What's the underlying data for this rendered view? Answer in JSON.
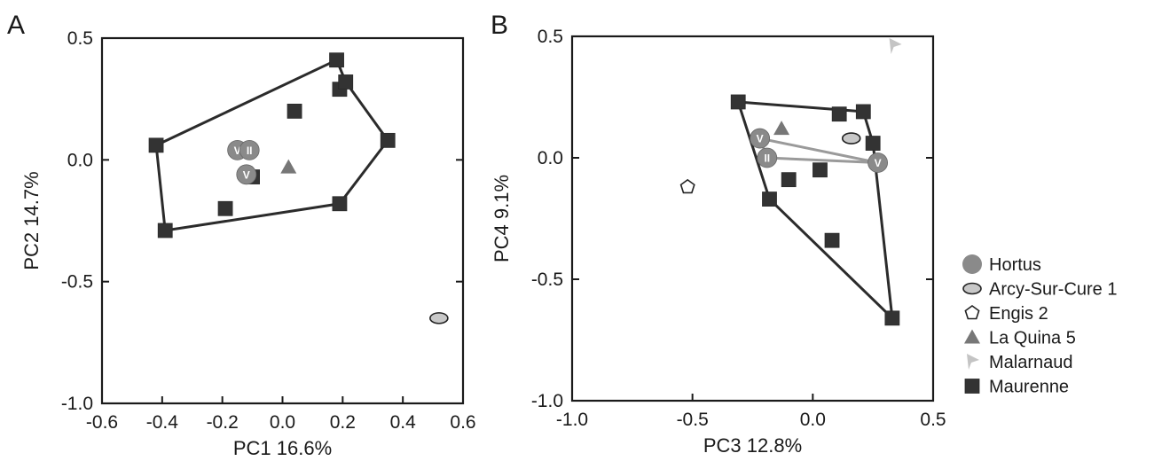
{
  "chart_data": [
    {
      "type": "scatter",
      "panel_label": "A",
      "title": "",
      "xlabel": "PC1 16.6%",
      "ylabel": "PC2 14.7%",
      "xlim": [
        -0.6,
        0.6
      ],
      "ylim": [
        -1.0,
        0.5
      ],
      "xticks": [
        "-0.6",
        "-0.4",
        "-0.2",
        "0.0",
        "0.2",
        "0.4",
        "0.6"
      ],
      "yticks": [
        "0.5",
        "0.0",
        "-0.5",
        "-1.0"
      ],
      "grid": false,
      "series": [
        {
          "name": "Maurenne",
          "marker": "square",
          "color": "#333333",
          "points": [
            [
              -0.42,
              0.06
            ],
            [
              -0.39,
              -0.29
            ],
            [
              -0.19,
              -0.2
            ],
            [
              -0.1,
              -0.07
            ],
            [
              0.04,
              0.2
            ],
            [
              0.18,
              0.41
            ],
            [
              0.19,
              0.29
            ],
            [
              0.21,
              0.32
            ],
            [
              0.35,
              0.08
            ],
            [
              0.19,
              -0.18
            ]
          ]
        },
        {
          "name": "Hortus",
          "marker": "circle",
          "color": "#8a8a8a",
          "points": [
            [
              -0.15,
              0.04
            ],
            [
              -0.11,
              0.04
            ],
            [
              -0.12,
              -0.06
            ]
          ],
          "point_labels": [
            "V",
            "II",
            "V"
          ]
        },
        {
          "name": "La Quina 5",
          "marker": "triangle",
          "color": "#777777",
          "points": [
            [
              0.02,
              -0.03
            ]
          ]
        },
        {
          "name": "Arcy-Sur-Cure 1",
          "marker": "ellipse",
          "color": "#c8c8c8",
          "points": [
            [
              0.52,
              -0.65
            ]
          ]
        }
      ],
      "hulls": [
        {
          "series": "Maurenne",
          "vertices": [
            [
              -0.42,
              0.06
            ],
            [
              0.18,
              0.41
            ],
            [
              0.21,
              0.32
            ],
            [
              0.35,
              0.08
            ],
            [
              0.19,
              -0.18
            ],
            [
              -0.39,
              -0.29
            ]
          ]
        }
      ]
    },
    {
      "type": "scatter",
      "panel_label": "B",
      "title": "",
      "xlabel": "PC3 12.8%",
      "ylabel": "PC4 9.1%",
      "xlim": [
        -1.0,
        0.5
      ],
      "ylim": [
        -1.0,
        0.5
      ],
      "xticks": [
        "-1.0",
        "-0.5",
        "0.0",
        "0.5"
      ],
      "yticks": [
        "0.5",
        "0.0",
        "-0.5",
        "-1.0"
      ],
      "grid": false,
      "series": [
        {
          "name": "Maurenne",
          "marker": "square",
          "color": "#333333",
          "points": [
            [
              -0.31,
              0.23
            ],
            [
              -0.18,
              -0.17
            ],
            [
              -0.1,
              -0.09
            ],
            [
              0.03,
              -0.05
            ],
            [
              0.08,
              -0.34
            ],
            [
              0.11,
              0.18
            ],
            [
              0.21,
              0.19
            ],
            [
              0.25,
              0.06
            ],
            [
              0.33,
              -0.66
            ]
          ]
        },
        {
          "name": "Hortus",
          "marker": "circle",
          "color": "#8a8a8a",
          "points": [
            [
              -0.22,
              0.08
            ],
            [
              -0.19,
              0.0
            ],
            [
              0.27,
              -0.02
            ]
          ],
          "point_labels": [
            "V",
            "II",
            "V"
          ]
        },
        {
          "name": "La Quina 5",
          "marker": "triangle",
          "color": "#777777",
          "points": [
            [
              -0.13,
              0.12
            ]
          ]
        },
        {
          "name": "Arcy-Sur-Cure 1",
          "marker": "ellipse",
          "color": "#c8c8c8",
          "points": [
            [
              0.16,
              0.08
            ]
          ]
        },
        {
          "name": "Engis 2",
          "marker": "pentagon",
          "color": "#ffffff",
          "points": [
            [
              -0.52,
              -0.12
            ]
          ]
        },
        {
          "name": "Malarnaud",
          "marker": "flag",
          "color": "#c4c4c4",
          "points": [
            [
              0.34,
              0.46
            ]
          ]
        }
      ],
      "hulls": [
        {
          "series": "Maurenne",
          "vertices": [
            [
              -0.31,
              0.23
            ],
            [
              0.21,
              0.19
            ],
            [
              0.25,
              0.06
            ],
            [
              0.33,
              -0.66
            ],
            [
              -0.18,
              -0.17
            ]
          ]
        },
        {
          "series": "Hortus",
          "vertices": [
            [
              -0.22,
              0.08
            ],
            [
              0.27,
              -0.02
            ],
            [
              -0.19,
              0.0
            ]
          ]
        }
      ]
    }
  ],
  "legend": {
    "placement": "right",
    "items": [
      {
        "label": "Hortus",
        "marker": "circle",
        "color": "#8a8a8a"
      },
      {
        "label": "Arcy-Sur-Cure 1",
        "marker": "ellipse",
        "color": "#c8c8c8"
      },
      {
        "label": "Engis 2",
        "marker": "pentagon",
        "color": "#ffffff"
      },
      {
        "label": "La Quina 5",
        "marker": "triangle",
        "color": "#777777"
      },
      {
        "label": "Malarnaud",
        "marker": "flag",
        "color": "#c4c4c4"
      },
      {
        "label": "Maurenne",
        "marker": "square",
        "color": "#333333"
      }
    ]
  }
}
